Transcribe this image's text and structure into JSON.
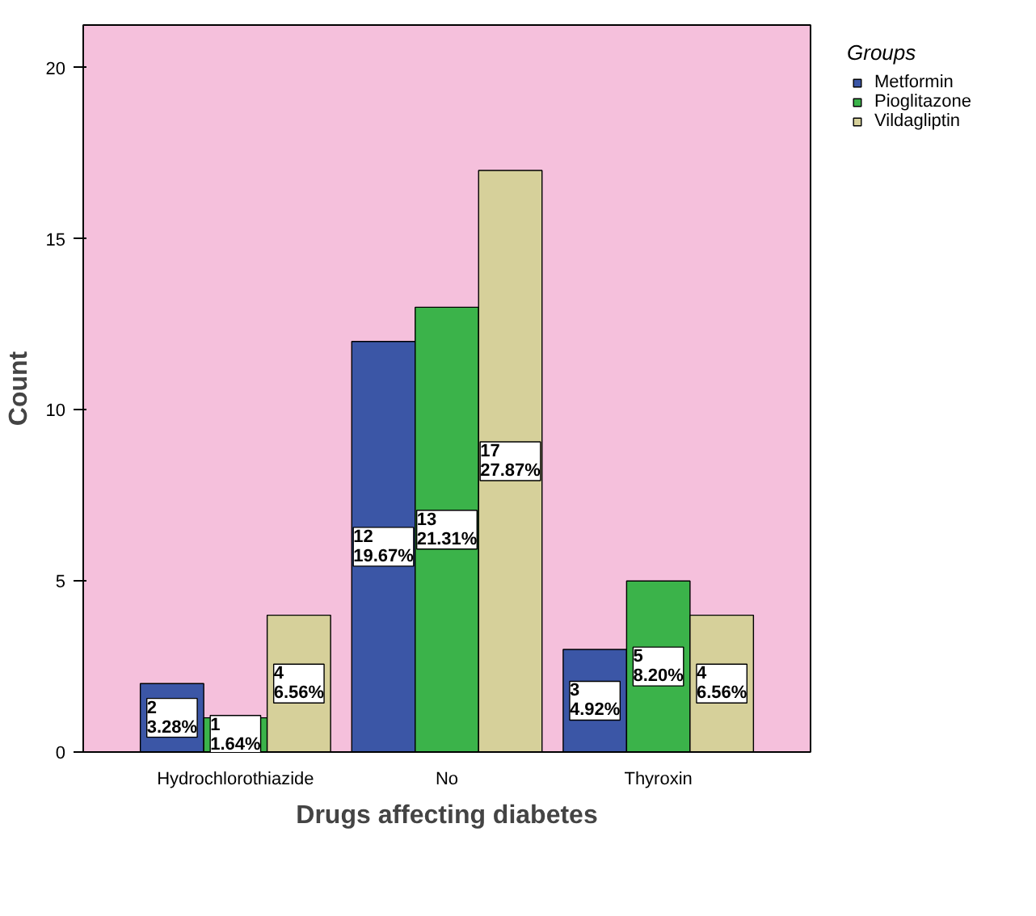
{
  "chart_data": {
    "type": "bar",
    "xlabel": "Drugs affecting diabetes",
    "ylabel": "Count",
    "legend_title": "Groups",
    "legend": "right",
    "grid": false,
    "categories": [
      "Hydrochlorothiazide",
      "No",
      "Thyroxin"
    ],
    "ylim": [
      0,
      21.25
    ],
    "yticks": [
      0,
      5,
      10,
      15,
      20
    ],
    "series": [
      {
        "name": "Metformin",
        "color": "#3b56a6",
        "values": [
          2,
          12,
          3
        ],
        "value_labels": [
          "2\n3.28%",
          "12\n19.67%",
          "3\n4.92%"
        ]
      },
      {
        "name": "Pioglitazone",
        "color": "#3bb34a",
        "values": [
          1,
          13,
          5
        ],
        "value_labels": [
          "1\n1.64%",
          "13\n21.31%",
          "5\n8.20%"
        ]
      },
      {
        "name": "Vildagliptin",
        "color": "#d6d09a",
        "values": [
          4,
          17,
          4
        ],
        "value_labels": [
          "4\n6.56%",
          "17\n27.87%",
          "4\n6.56%"
        ]
      }
    ]
  }
}
